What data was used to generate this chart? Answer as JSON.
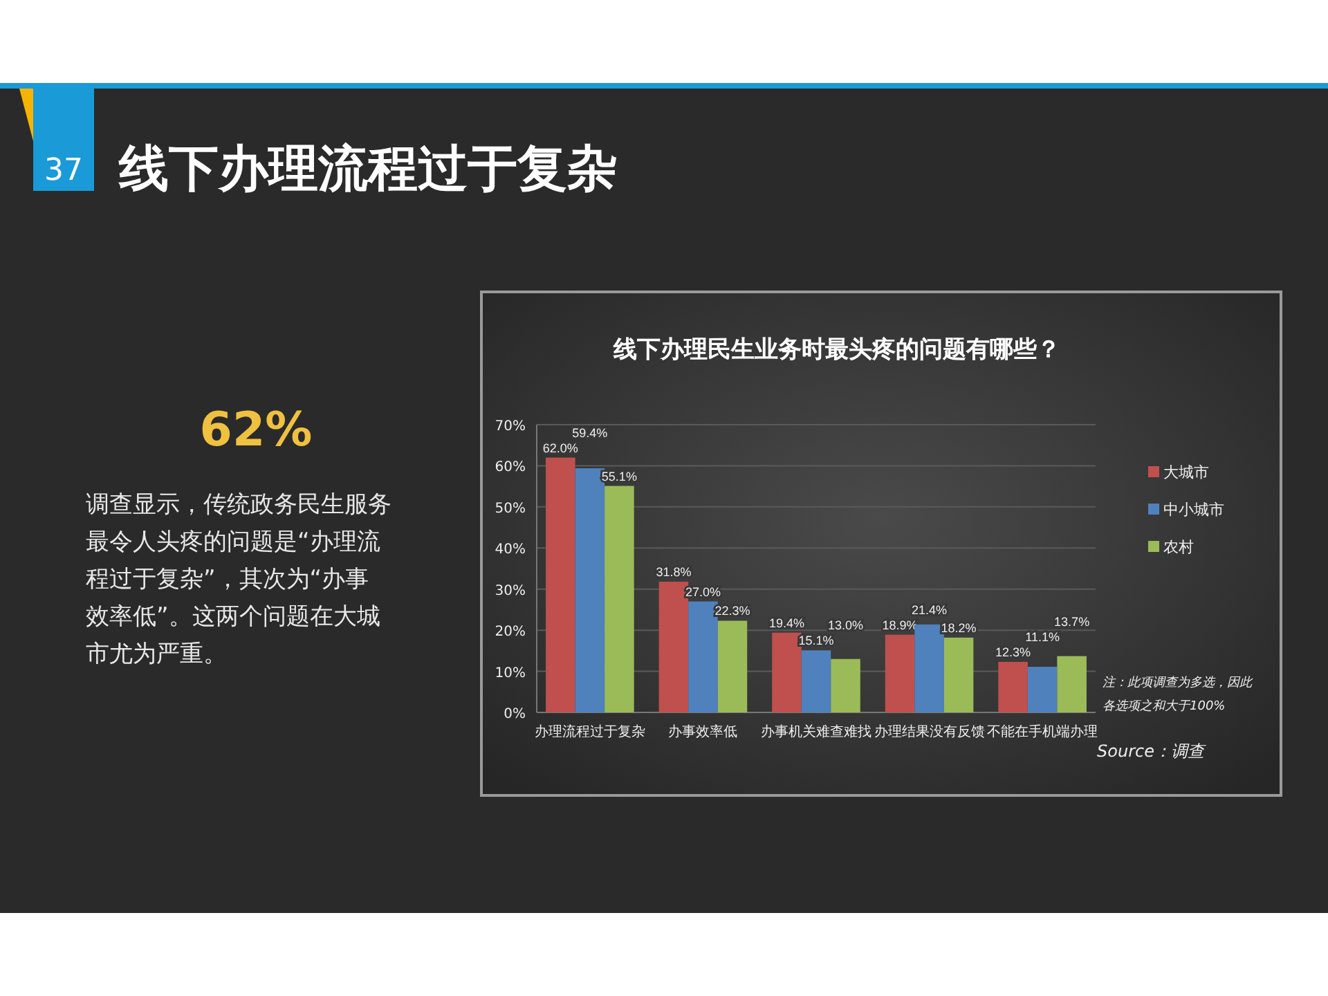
{
  "chart_data": {
    "type": "bar",
    "title": "线下办理民生业务时最头疼的问题有哪些？",
    "categories": [
      "办理流程过于复杂",
      "办事效率低",
      "办事机关难查难找",
      "办理结果没有反馈",
      "不能在手机端办理"
    ],
    "series": [
      {
        "name": "大城市",
        "color": "#c0504d",
        "values": [
          62.0,
          31.8,
          19.4,
          18.9,
          12.3
        ]
      },
      {
        "name": "中小城市",
        "color": "#4f81bd",
        "values": [
          59.4,
          27.0,
          15.1,
          21.4,
          11.1
        ]
      },
      {
        "name": "农村",
        "color": "#9bbb59",
        "values": [
          55.1,
          22.3,
          13.0,
          18.2,
          13.7
        ]
      }
    ],
    "value_labels": [
      [
        "62.0%",
        "31.8%",
        "19.4%",
        "18.9%",
        "12.3%"
      ],
      [
        "59.4%",
        "27.0%",
        "15.1%",
        "21.4%",
        "11.1%"
      ],
      [
        "55.1%",
        "22.3%",
        "13.0%",
        "18.2%",
        "13.7%"
      ]
    ],
    "ylim": [
      0,
      70
    ],
    "yticks": [
      {
        "value": 0,
        "label": "0%"
      },
      {
        "value": 10,
        "label": "10%"
      },
      {
        "value": 20,
        "label": "20%"
      },
      {
        "value": 30,
        "label": "30%"
      },
      {
        "value": 40,
        "label": "40%"
      },
      {
        "value": 50,
        "label": "50%"
      },
      {
        "value": 60,
        "label": "60%"
      },
      {
        "value": 70,
        "label": "70%"
      }
    ],
    "grid": "y",
    "legend": "right",
    "annotations": [
      "37",
      "线下办理流程过于复杂",
      "62%",
      "调查显示，传统政务民生服务最令人头疼的问题是“办理流程过于复杂”，其次为“办事效率低”。这两个问题在大城市尤为严重。",
      "注：此项调查为多选，因此各选项之和大于100%",
      "Source：调查"
    ]
  }
}
